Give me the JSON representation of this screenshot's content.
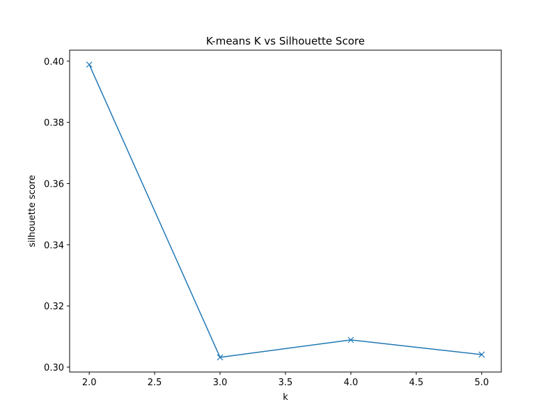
{
  "chart_data": {
    "type": "line",
    "title": "K-means K vs Silhouette Score",
    "x_label": "k",
    "y_label": "silhouette score",
    "x": [
      2,
      3,
      4,
      5
    ],
    "series": [
      {
        "color": "#1f77b4",
        "marker": "x",
        "values": [
          0.3989,
          0.3032,
          0.3089,
          0.3041
        ]
      }
    ],
    "xlim": [
      1.85,
      5.15
    ],
    "xticks": [
      {
        "value": 2,
        "label": "2.0"
      },
      {
        "value": 2.5,
        "label": "2.5"
      },
      {
        "value": 3,
        "label": "3.0"
      },
      {
        "value": 3.5,
        "label": "3.5"
      },
      {
        "value": 4,
        "label": "4.0"
      },
      {
        "value": 4.5,
        "label": "4.5"
      },
      {
        "value": 5,
        "label": "5.0"
      }
    ],
    "ylim": [
      0.2984,
      0.4036
    ],
    "yticks": [
      {
        "value": 0.3,
        "label": "0.30"
      },
      0.32,
      0.34,
      0.36,
      0.38,
      {
        "value": 0.4,
        "label": "0.40"
      }
    ],
    "grid": false
  }
}
